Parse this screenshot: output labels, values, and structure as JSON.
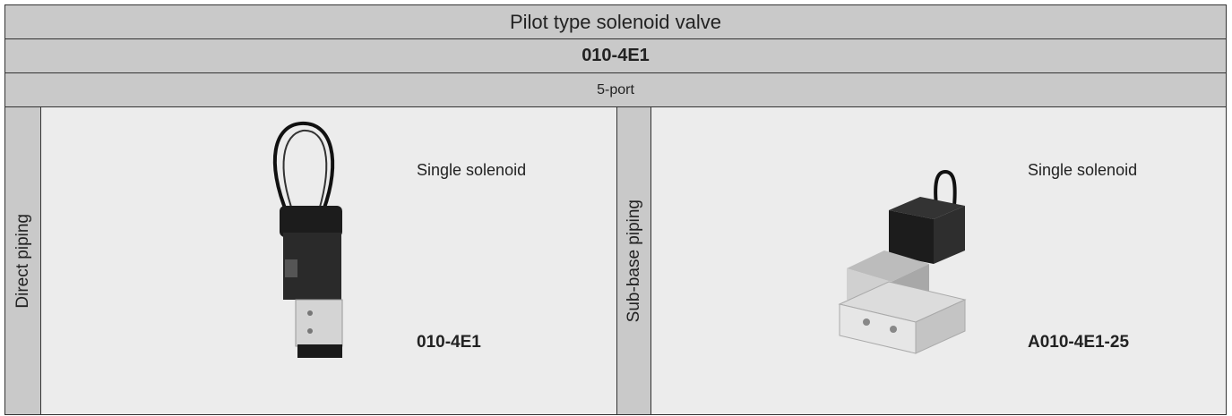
{
  "header": {
    "title": "Pilot type solenoid valve",
    "model": "010-4E1",
    "ports": "5-port"
  },
  "sections": [
    {
      "label": "Direct piping",
      "description": "Single solenoid",
      "model": "010-4E1"
    },
    {
      "label": "Sub-base piping",
      "description": "Single solenoid",
      "model": "A010-4E1-25"
    }
  ]
}
